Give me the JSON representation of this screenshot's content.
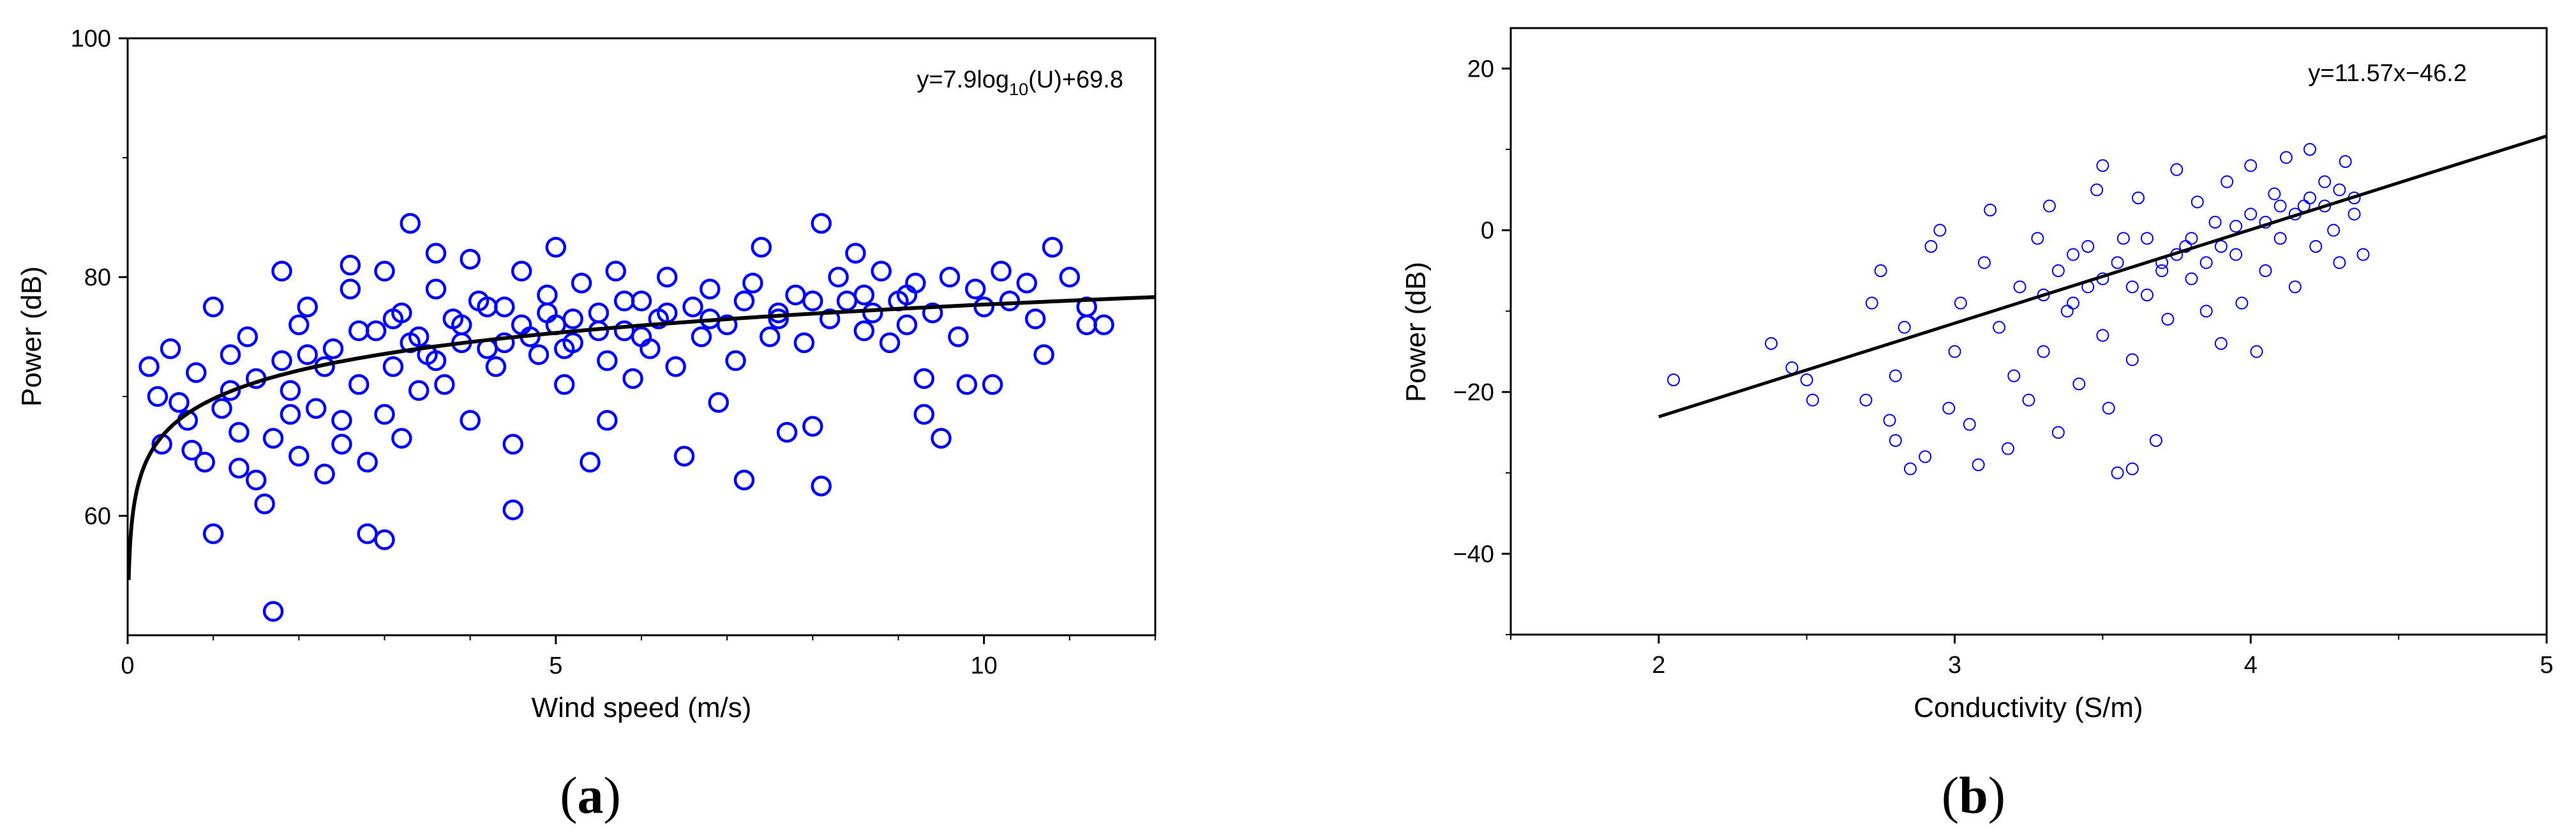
{
  "colors": {
    "marker": "#0000ff",
    "line": "#000000",
    "axis": "#000000"
  },
  "chart_data": [
    {
      "type": "scatter",
      "panel_label": "(a)",
      "panel_letter": "a",
      "xlabel": "Wind speed (m/s)",
      "ylabel": "Power (dB)",
      "xlim": [
        0,
        12
      ],
      "ylim": [
        50,
        100
      ],
      "xticks": [
        0,
        5,
        10
      ],
      "xticks_minor": [
        1,
        2,
        3,
        4,
        6,
        7,
        8,
        9,
        11,
        12
      ],
      "yticks": [
        60,
        80,
        100
      ],
      "yticks_minor": [
        70,
        90
      ],
      "annotation": {
        "prefix": "y=7.9log",
        "subscript": "10",
        "suffix": "(U)+69.8",
        "position": "top-right"
      },
      "fit": {
        "model": "a*log10(x)+b",
        "a": 7.9,
        "b": 69.8,
        "x_start": 0.012
      },
      "marker": {
        "shape": "open-circle",
        "color": "#0000ff"
      },
      "points": [
        [
          0.25,
          72.5
        ],
        [
          0.35,
          70.0
        ],
        [
          0.4,
          66.0
        ],
        [
          0.5,
          74.0
        ],
        [
          0.6,
          69.5
        ],
        [
          0.7,
          68.0
        ],
        [
          0.75,
          65.5
        ],
        [
          0.8,
          72.0
        ],
        [
          0.9,
          64.5
        ],
        [
          1.0,
          77.5
        ],
        [
          1.0,
          58.5
        ],
        [
          1.1,
          69.0
        ],
        [
          1.2,
          70.5
        ],
        [
          1.3,
          67.0
        ],
        [
          1.3,
          64.0
        ],
        [
          1.4,
          75.0
        ],
        [
          1.5,
          63.0
        ],
        [
          1.5,
          71.5
        ],
        [
          1.6,
          61.0
        ],
        [
          1.7,
          66.5
        ],
        [
          1.7,
          52.0
        ],
        [
          1.8,
          73.0
        ],
        [
          1.8,
          80.5
        ],
        [
          1.9,
          68.5
        ],
        [
          2.0,
          65.0
        ],
        [
          2.0,
          76.0
        ],
        [
          2.1,
          77.5
        ],
        [
          2.2,
          69.0
        ],
        [
          2.3,
          72.5
        ],
        [
          2.3,
          63.5
        ],
        [
          2.4,
          74.0
        ],
        [
          2.5,
          68.0
        ],
        [
          2.5,
          66.0
        ],
        [
          2.6,
          79.0
        ],
        [
          2.6,
          81.0
        ],
        [
          2.7,
          71.0
        ],
        [
          2.8,
          64.5
        ],
        [
          2.8,
          58.5
        ],
        [
          2.9,
          75.5
        ],
        [
          3.0,
          68.5
        ],
        [
          3.0,
          80.5
        ],
        [
          3.0,
          58.0
        ],
        [
          3.1,
          72.5
        ],
        [
          3.2,
          77.0
        ],
        [
          3.2,
          66.5
        ],
        [
          3.3,
          74.5
        ],
        [
          3.3,
          84.5
        ],
        [
          3.4,
          70.5
        ],
        [
          3.5,
          73.5
        ],
        [
          3.6,
          79.0
        ],
        [
          3.6,
          82.0
        ],
        [
          3.7,
          71.0
        ],
        [
          3.8,
          76.5
        ],
        [
          3.9,
          74.5
        ],
        [
          4.0,
          68.0
        ],
        [
          4.0,
          81.5
        ],
        [
          4.1,
          78.0
        ],
        [
          4.2,
          74.0
        ],
        [
          4.3,
          72.5
        ],
        [
          4.4,
          77.5
        ],
        [
          4.5,
          66.0
        ],
        [
          4.5,
          60.5
        ],
        [
          4.6,
          80.5
        ],
        [
          4.7,
          75.0
        ],
        [
          4.8,
          73.5
        ],
        [
          4.9,
          78.5
        ],
        [
          5.0,
          82.5
        ],
        [
          5.0,
          76.0
        ],
        [
          5.1,
          71.0
        ],
        [
          5.2,
          74.5
        ],
        [
          5.3,
          79.5
        ],
        [
          5.4,
          64.5
        ],
        [
          5.5,
          77.0
        ],
        [
          5.6,
          73.0
        ],
        [
          5.6,
          68.0
        ],
        [
          5.7,
          80.5
        ],
        [
          5.8,
          75.5
        ],
        [
          5.9,
          71.5
        ],
        [
          6.0,
          78.0
        ],
        [
          6.1,
          74.0
        ],
        [
          6.2,
          76.5
        ],
        [
          6.3,
          80.0
        ],
        [
          6.4,
          72.5
        ],
        [
          6.5,
          65.0
        ],
        [
          6.6,
          77.5
        ],
        [
          6.7,
          75.0
        ],
        [
          6.8,
          79.0
        ],
        [
          6.9,
          69.5
        ],
        [
          7.0,
          76.0
        ],
        [
          7.1,
          73.0
        ],
        [
          7.2,
          63.0
        ],
        [
          7.3,
          79.5
        ],
        [
          7.4,
          82.5
        ],
        [
          7.5,
          75.0
        ],
        [
          7.6,
          77.0
        ],
        [
          7.7,
          67.0
        ],
        [
          7.8,
          78.5
        ],
        [
          7.9,
          74.5
        ],
        [
          8.0,
          67.5
        ],
        [
          8.1,
          62.5
        ],
        [
          8.1,
          84.5
        ],
        [
          8.2,
          76.5
        ],
        [
          8.3,
          80.0
        ],
        [
          8.4,
          78.0
        ],
        [
          8.5,
          82.0
        ],
        [
          8.6,
          75.5
        ],
        [
          8.7,
          77.0
        ],
        [
          8.8,
          80.5
        ],
        [
          8.9,
          74.5
        ],
        [
          9.0,
          78.0
        ],
        [
          9.1,
          76.0
        ],
        [
          9.2,
          79.5
        ],
        [
          9.3,
          68.5
        ],
        [
          9.3,
          71.5
        ],
        [
          9.4,
          77.0
        ],
        [
          9.5,
          66.5
        ],
        [
          9.6,
          80.0
        ],
        [
          9.7,
          75.0
        ],
        [
          9.8,
          71.0
        ],
        [
          9.9,
          79.0
        ],
        [
          10.0,
          77.5
        ],
        [
          10.1,
          71.0
        ],
        [
          10.2,
          80.5
        ],
        [
          10.3,
          78.0
        ],
        [
          10.5,
          79.5
        ],
        [
          10.6,
          76.5
        ],
        [
          10.7,
          73.5
        ],
        [
          10.8,
          82.5
        ],
        [
          11.0,
          80.0
        ],
        [
          11.2,
          77.5
        ],
        [
          11.2,
          76.0
        ],
        [
          11.4,
          76.0
        ],
        [
          1.2,
          73.5
        ],
        [
          1.9,
          70.5
        ],
        [
          2.1,
          73.5
        ],
        [
          2.7,
          75.5
        ],
        [
          3.1,
          76.5
        ],
        [
          3.4,
          75.0
        ],
        [
          3.9,
          76.0
        ],
        [
          4.2,
          77.5
        ],
        [
          4.6,
          76.0
        ],
        [
          4.9,
          77.0
        ],
        [
          5.2,
          76.5
        ],
        [
          5.5,
          75.5
        ],
        [
          5.8,
          78.0
        ],
        [
          6.3,
          77.0
        ],
        [
          6.8,
          76.5
        ],
        [
          7.2,
          78.0
        ],
        [
          7.6,
          76.5
        ],
        [
          8.0,
          78.0
        ],
        [
          8.6,
          78.5
        ],
        [
          9.1,
          78.5
        ],
        [
          3.6,
          73.0
        ],
        [
          4.4,
          74.5
        ],
        [
          5.1,
          74.0
        ],
        [
          6.0,
          75.0
        ]
      ]
    },
    {
      "type": "scatter",
      "panel_label": "(b)",
      "panel_letter": "b",
      "xlabel": "Conductivity (S/m)",
      "ylabel": "Power (dB)",
      "xlim": [
        1.5,
        5
      ],
      "ylim": [
        -50,
        25
      ],
      "xticks": [
        2,
        3,
        4,
        5
      ],
      "xticks_minor": [
        1.5,
        2.5,
        3.5,
        4.5
      ],
      "yticks": [
        -40,
        -20,
        0,
        20
      ],
      "yticks_minor": [
        -50,
        -30,
        -10,
        10
      ],
      "annotation": {
        "text": "y=11.57x−46.2",
        "position": "top-right"
      },
      "fit": {
        "model": "a*x+b",
        "a": 11.57,
        "b": -46.2,
        "x_range": [
          2,
          5
        ]
      },
      "marker": {
        "shape": "open-circle",
        "color": "#0000ff"
      },
      "points": [
        [
          2.05,
          -18.5
        ],
        [
          2.38,
          -14.0
        ],
        [
          2.45,
          -17.0
        ],
        [
          2.5,
          -18.5
        ],
        [
          2.52,
          -21.0
        ],
        [
          2.7,
          -21.0
        ],
        [
          2.72,
          -9.0
        ],
        [
          2.75,
          -5.0
        ],
        [
          2.78,
          -23.5
        ],
        [
          2.8,
          -26.0
        ],
        [
          2.8,
          -18.0
        ],
        [
          2.83,
          -12.0
        ],
        [
          2.85,
          -29.5
        ],
        [
          2.9,
          -28.0
        ],
        [
          2.92,
          -2.0
        ],
        [
          2.95,
          0.0
        ],
        [
          2.98,
          -22.0
        ],
        [
          3.0,
          -15.0
        ],
        [
          3.02,
          -9.0
        ],
        [
          3.05,
          -24.0
        ],
        [
          3.08,
          -29.0
        ],
        [
          3.1,
          -4.0
        ],
        [
          3.12,
          2.5
        ],
        [
          3.15,
          -12.0
        ],
        [
          3.18,
          -27.0
        ],
        [
          3.2,
          -18.0
        ],
        [
          3.22,
          -7.0
        ],
        [
          3.25,
          -21.0
        ],
        [
          3.28,
          -1.0
        ],
        [
          3.3,
          -15.0
        ],
        [
          3.32,
          3.0
        ],
        [
          3.35,
          -25.0
        ],
        [
          3.38,
          -10.0
        ],
        [
          3.4,
          -3.0
        ],
        [
          3.42,
          -19.0
        ],
        [
          3.45,
          -7.0
        ],
        [
          3.48,
          5.0
        ],
        [
          3.5,
          -13.0
        ],
        [
          3.5,
          8.0
        ],
        [
          3.52,
          -22.0
        ],
        [
          3.55,
          -30.0
        ],
        [
          3.57,
          -1.0
        ],
        [
          3.6,
          -16.0
        ],
        [
          3.6,
          -29.5
        ],
        [
          3.62,
          4.0
        ],
        [
          3.65,
          -8.0
        ],
        [
          3.68,
          -26.0
        ],
        [
          3.7,
          -4.0
        ],
        [
          3.72,
          -11.0
        ],
        [
          3.75,
          7.5
        ],
        [
          3.78,
          -2.0
        ],
        [
          3.8,
          -6.0
        ],
        [
          3.82,
          3.5
        ],
        [
          3.85,
          -10.0
        ],
        [
          3.88,
          1.0
        ],
        [
          3.9,
          -14.0
        ],
        [
          3.92,
          6.0
        ],
        [
          3.95,
          -3.0
        ],
        [
          3.97,
          -9.0
        ],
        [
          4.0,
          2.0
        ],
        [
          4.0,
          8.0
        ],
        [
          4.02,
          -15.0
        ],
        [
          4.05,
          -5.0
        ],
        [
          4.08,
          4.5
        ],
        [
          4.1,
          -1.0
        ],
        [
          4.12,
          9.0
        ],
        [
          4.15,
          -7.0
        ],
        [
          4.18,
          3.0
        ],
        [
          4.2,
          10.0
        ],
        [
          4.22,
          -2.0
        ],
        [
          4.25,
          6.0
        ],
        [
          4.28,
          0.0
        ],
        [
          4.3,
          -4.0
        ],
        [
          4.32,
          8.5
        ],
        [
          4.35,
          2.0
        ],
        [
          4.38,
          -3.0
        ],
        [
          3.3,
          -8.0
        ],
        [
          3.35,
          -5.0
        ],
        [
          3.4,
          -9.0
        ],
        [
          3.45,
          -2.0
        ],
        [
          3.5,
          -6.0
        ],
        [
          3.55,
          -4.0
        ],
        [
          3.6,
          -7.0
        ],
        [
          3.65,
          -1.0
        ],
        [
          3.7,
          -5.0
        ],
        [
          3.75,
          -3.0
        ],
        [
          3.8,
          -1.0
        ],
        [
          3.85,
          -4.0
        ],
        [
          3.9,
          -2.0
        ],
        [
          3.95,
          0.5
        ],
        [
          4.05,
          1.0
        ],
        [
          4.1,
          3.0
        ],
        [
          4.15,
          2.0
        ],
        [
          4.2,
          4.0
        ],
        [
          4.25,
          3.0
        ],
        [
          4.3,
          5.0
        ],
        [
          4.35,
          4.0
        ]
      ]
    }
  ]
}
